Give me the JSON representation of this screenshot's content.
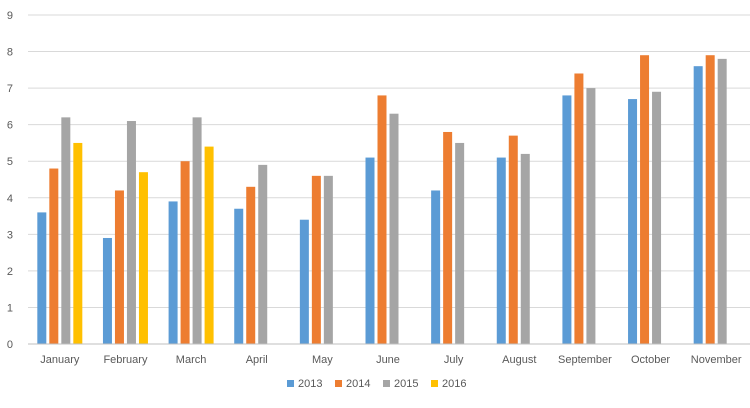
{
  "chart_data": {
    "type": "bar",
    "title": "",
    "xlabel": "",
    "ylabel": "",
    "ylim": [
      0,
      9
    ],
    "yticks": [
      0,
      1,
      2,
      3,
      4,
      5,
      6,
      7,
      8,
      9
    ],
    "grid": "horizontal",
    "legend_position": "bottom",
    "categories": [
      "January",
      "February",
      "March",
      "April",
      "May",
      "June",
      "July",
      "August",
      "September",
      "October",
      "November"
    ],
    "series": [
      {
        "name": "2013",
        "color": "#5B9BD5",
        "values": [
          3.6,
          2.9,
          3.9,
          3.7,
          3.4,
          5.1,
          4.2,
          5.1,
          6.8,
          6.7,
          7.6
        ]
      },
      {
        "name": "2014",
        "color": "#ED7D31",
        "values": [
          4.8,
          4.2,
          5.0,
          4.3,
          4.6,
          6.8,
          5.8,
          5.7,
          7.4,
          7.9,
          7.9
        ]
      },
      {
        "name": "2015",
        "color": "#A5A5A5",
        "values": [
          6.2,
          6.1,
          6.2,
          4.9,
          4.6,
          6.3,
          5.5,
          5.2,
          7.0,
          6.9,
          7.8
        ]
      },
      {
        "name": "2016",
        "color": "#FFC000",
        "values": [
          5.5,
          4.7,
          5.4,
          null,
          null,
          null,
          null,
          null,
          null,
          null,
          null
        ]
      }
    ]
  }
}
